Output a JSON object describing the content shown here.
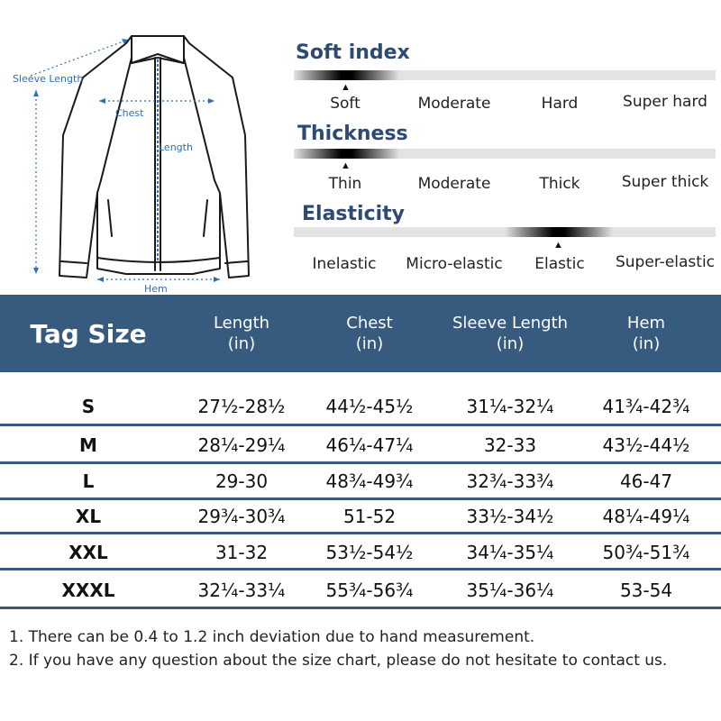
{
  "diagram": {
    "labels": {
      "sleeve_length": "Sleeve Length",
      "chest": "Chest",
      "length": "Length",
      "hem": "Hem"
    }
  },
  "properties": [
    {
      "title": "Soft index",
      "levels": [
        "Soft",
        "Moderate",
        "Hard",
        "Super hard"
      ],
      "selected_index": 0
    },
    {
      "title": "Thickness",
      "levels": [
        "Thin",
        "Moderate",
        "Thick",
        "Super thick"
      ],
      "selected_index": 0
    },
    {
      "title": "Elasticity",
      "levels": [
        "Inelastic",
        "Micro-elastic",
        "Elastic",
        "Super-elastic"
      ],
      "selected_index": 2
    }
  ],
  "marker_glyph": "▲",
  "table": {
    "header": {
      "tag_size": "Tag Size",
      "columns": [
        {
          "name": "Length",
          "unit": "(in)"
        },
        {
          "name": "Chest",
          "unit": "(in)"
        },
        {
          "name": "Sleeve Length",
          "unit": "(in)"
        },
        {
          "name": "Hem",
          "unit": "(in)"
        }
      ]
    },
    "rows": [
      {
        "size": "S",
        "values": [
          "27½-28½",
          "44½-45½",
          "31¼-32¼",
          "41¾-42¾"
        ]
      },
      {
        "size": "M",
        "values": [
          "28¼-29¼",
          "46¼-47¼",
          "32-33",
          "43½-44½"
        ]
      },
      {
        "size": "L",
        "values": [
          "29-30",
          "48¾-49¾",
          "32¾-33¾",
          "46-47"
        ]
      },
      {
        "size": "XL",
        "values": [
          "29¾-30¾",
          "51-52",
          "33½-34½",
          "48¼-49¼"
        ]
      },
      {
        "size": "XXL",
        "values": [
          "31-32",
          "53½-54½",
          "34¼-35¼",
          "50¾-51¾"
        ]
      },
      {
        "size": "XXXL",
        "values": [
          "32¼-33¼",
          "55¾-56¾",
          "35¼-36¼",
          "53-54"
        ]
      }
    ]
  },
  "notes": [
    "1. There can be 0.4 to 1.2 inch deviation due to hand measurement.",
    "2. If you have any question about the size chart, please do not hesitate to contact us."
  ],
  "colors": {
    "header_bg": "#375a7f",
    "title_text": "#2e4a72",
    "dimension_lines": "#2c6fb3"
  }
}
